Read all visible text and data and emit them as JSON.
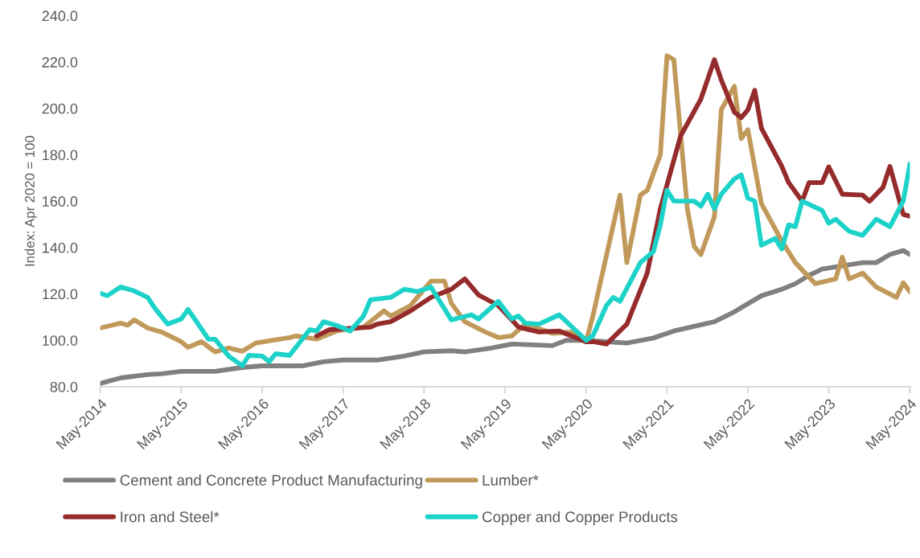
{
  "chart_data": {
    "type": "line",
    "ylabel": "Index: Apr 2020 = 100",
    "xlim": [
      "2014-05",
      "2024-05"
    ],
    "xticks": [
      {
        "value": "2014-05",
        "label": "May-2014"
      },
      {
        "value": "2015-05",
        "label": "May-2015"
      },
      {
        "value": "2016-05",
        "label": "May-2016"
      },
      {
        "value": "2017-05",
        "label": "May-2017"
      },
      {
        "value": "2018-05",
        "label": "May-2018"
      },
      {
        "value": "2019-05",
        "label": "May-2019"
      },
      {
        "value": "2020-05",
        "label": "May-2020"
      },
      {
        "value": "2021-05",
        "label": "May-2021"
      },
      {
        "value": "2022-05",
        "label": "May-2022"
      },
      {
        "value": "2023-05",
        "label": "May-2023"
      },
      {
        "value": "2024-05",
        "label": "May-2024"
      }
    ],
    "ylim": [
      80,
      240
    ],
    "yticks": [
      {
        "value": 80,
        "label": "80.0"
      },
      {
        "value": 100,
        "label": "100.0"
      },
      {
        "value": 120,
        "label": "120.0"
      },
      {
        "value": 140,
        "label": "140.0"
      },
      {
        "value": 160,
        "label": "160.0"
      },
      {
        "value": 180,
        "label": "180.0"
      },
      {
        "value": 200,
        "label": "200.0"
      },
      {
        "value": 220,
        "label": "220.0"
      },
      {
        "value": 240,
        "label": "240.0"
      }
    ],
    "grid": false,
    "legend": "bottom",
    "marker": "none",
    "line_style": "solid",
    "series": [
      {
        "name": "Cement and Concrete Product Manufacturing",
        "color": "#808080",
        "x": [
          "2014-05",
          "2014-08",
          "2014-12",
          "2015-02",
          "2015-05",
          "2015-10",
          "2016-02",
          "2016-05",
          "2016-11",
          "2017-02",
          "2017-05",
          "2017-10",
          "2018-02",
          "2018-05",
          "2018-09",
          "2018-11",
          "2019-03",
          "2019-06",
          "2019-12",
          "2020-02",
          "2020-05",
          "2020-11",
          "2021-03",
          "2021-06",
          "2021-12",
          "2022-03",
          "2022-07",
          "2022-10",
          "2022-12",
          "2023-02",
          "2023-04",
          "2023-10",
          "2023-12",
          "2024-02",
          "2024-04",
          "2024-05"
        ],
        "values": [
          81.4,
          83.8,
          85.2,
          85.6,
          86.6,
          86.6,
          88.3,
          89,
          89,
          90.8,
          91.5,
          91.5,
          93.2,
          95,
          95.5,
          95,
          96.7,
          98.4,
          97.7,
          100,
          100,
          98.8,
          101,
          104,
          108,
          112.3,
          119.2,
          122,
          124.4,
          128,
          130.7,
          133.5,
          133.5,
          137,
          138.7,
          137
        ]
      },
      {
        "name": "Lumber*",
        "color": "#c19a5b",
        "x": [
          "2014-05",
          "2014-08",
          "2014-09",
          "2014-10",
          "2014-12",
          "2015-02",
          "2015-05",
          "2015-06",
          "2015-08",
          "2015-10",
          "2015-12",
          "2016-02",
          "2016-04",
          "2016-09",
          "2016-10",
          "2017-01",
          "2017-04",
          "2017-08",
          "2017-11",
          "2017-12",
          "2018-03",
          "2018-06",
          "2018-08",
          "2018-09",
          "2018-11",
          "2019-02",
          "2019-04",
          "2019-06",
          "2019-08",
          "2019-12",
          "2020-03",
          "2020-05",
          "2020-06",
          "2020-10",
          "2020-11",
          "2021-01",
          "2021-02",
          "2021-04",
          "2021-05",
          "2021-06",
          "2021-08",
          "2021-09",
          "2021-10",
          "2021-12",
          "2022-01",
          "2022-03",
          "2022-04",
          "2022-05",
          "2022-07",
          "2022-10",
          "2022-12",
          "2023-03",
          "2023-06",
          "2023-07",
          "2023-08",
          "2023-10",
          "2023-12",
          "2024-03",
          "2024-04",
          "2024-05"
        ],
        "values": [
          105.3,
          107.4,
          106.5,
          108.8,
          105.3,
          103.6,
          99.4,
          97,
          99.4,
          95,
          96.7,
          95.3,
          98.8,
          101.2,
          101.9,
          100.5,
          104,
          105.7,
          112.7,
          110.5,
          115,
          125.5,
          125.5,
          116,
          108,
          103.6,
          101.2,
          101.9,
          107,
          103,
          103.6,
          99.4,
          110.6,
          162.6,
          133.5,
          162.6,
          164.7,
          180,
          222.7,
          221,
          156.7,
          140.4,
          137,
          153.3,
          199.4,
          209.5,
          187,
          190.8,
          159,
          142.8,
          133.5,
          124.4,
          126.5,
          135.9,
          126.5,
          129,
          123,
          118.5,
          124.8,
          121
        ]
      },
      {
        "name": "Iron and Steel*",
        "color": "#952b2b",
        "x": [
          "2017-01",
          "2017-03",
          "2017-09",
          "2017-10",
          "2017-12",
          "2018-03",
          "2018-06",
          "2018-09",
          "2018-11",
          "2019-01",
          "2019-04",
          "2019-07",
          "2019-10",
          "2020-01",
          "2020-05",
          "2020-06",
          "2020-08",
          "2020-11",
          "2021-02",
          "2021-04",
          "2021-07",
          "2021-10",
          "2021-12",
          "2022-01",
          "2022-03",
          "2022-04",
          "2022-05",
          "2022-06",
          "2022-07",
          "2022-10",
          "2022-11",
          "2023-01",
          "2023-02",
          "2023-04",
          "2023-05",
          "2023-07",
          "2023-10",
          "2023-11",
          "2024-01",
          "2024-02",
          "2024-04",
          "2024-05"
        ],
        "values": [
          101.9,
          104.6,
          105.7,
          107,
          108,
          112.7,
          118.5,
          122,
          126.5,
          119.6,
          115,
          105.7,
          103.6,
          104,
          99.4,
          99.4,
          98.4,
          107,
          129,
          156.7,
          188,
          204,
          221,
          212.3,
          198.4,
          196,
          199.4,
          207.8,
          191.5,
          175,
          168,
          160,
          168,
          168,
          174.8,
          163,
          162.6,
          160,
          166,
          175,
          154.3,
          153.5
        ]
      },
      {
        "name": "Copper and Copper Products",
        "color": "#1dd3c9",
        "x": [
          "2014-05",
          "2014-06",
          "2014-08",
          "2014-10",
          "2014-12",
          "2015-01",
          "2015-03",
          "2015-05",
          "2015-06",
          "2015-07",
          "2015-09",
          "2015-10",
          "2015-12",
          "2016-02",
          "2016-03",
          "2016-05",
          "2016-06",
          "2016-07",
          "2016-09",
          "2016-12",
          "2017-01",
          "2017-02",
          "2017-04",
          "2017-06",
          "2017-08",
          "2017-09",
          "2017-12",
          "2018-02",
          "2018-04",
          "2018-06",
          "2018-09",
          "2018-12",
          "2019-01",
          "2019-04",
          "2019-06",
          "2019-07",
          "2019-08",
          "2019-10",
          "2020-01",
          "2020-05",
          "2020-06",
          "2020-08",
          "2020-09",
          "2020-10",
          "2021-01",
          "2021-03",
          "2021-04",
          "2021-05",
          "2021-06",
          "2021-09",
          "2021-10",
          "2021-11",
          "2021-12",
          "2022-01",
          "2022-03",
          "2022-04",
          "2022-05",
          "2022-06",
          "2022-07",
          "2022-09",
          "2022-10",
          "2022-11",
          "2022-12",
          "2023-01",
          "2023-04",
          "2023-05",
          "2023-06",
          "2023-08",
          "2023-10",
          "2023-12",
          "2024-02",
          "2024-04",
          "2024-05"
        ],
        "values": [
          120.3,
          119.2,
          123,
          121.3,
          118.5,
          114,
          107,
          109.2,
          113.3,
          109.2,
          100.5,
          100.5,
          93.2,
          89,
          93.5,
          93.2,
          90.8,
          94.2,
          93.5,
          104.6,
          104,
          108,
          106.4,
          104,
          110.5,
          117.5,
          118.5,
          122,
          121,
          123,
          108.8,
          111,
          109.2,
          116.8,
          109.2,
          110.5,
          107.4,
          107,
          111,
          100,
          102,
          115,
          118.5,
          116.8,
          133.5,
          138.3,
          149.8,
          164.7,
          160,
          160,
          157.8,
          163,
          156.7,
          163,
          169.6,
          171.3,
          161.3,
          160,
          141,
          143.9,
          139.4,
          149.8,
          149,
          160,
          156,
          150.5,
          152.2,
          147,
          145.3,
          152.2,
          149,
          160,
          176
        ]
      }
    ]
  }
}
